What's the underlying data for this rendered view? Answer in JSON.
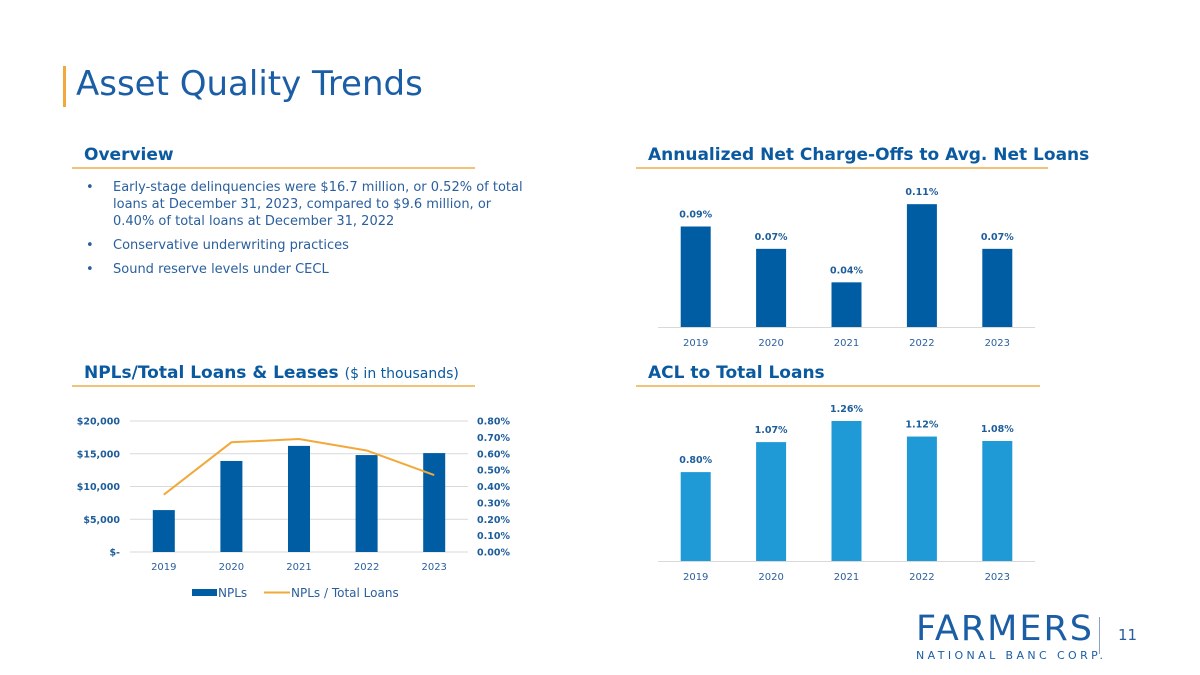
{
  "page": {
    "title": "Asset Quality Trends",
    "page_number": "11"
  },
  "overview": {
    "heading": "Overview",
    "bullets": [
      "Early-stage delinquencies were $16.7 million, or 0.52% of total loans at December 31, 2023, compared to $9.6 million, or 0.40% of total loans at December 31, 2022",
      "Conservative underwriting practices",
      "Sound reserve levels under CECL"
    ],
    "bullet_glyph": "•"
  },
  "logo": {
    "name": "FARMERS",
    "subtitle": "NATIONAL BANC CORP."
  },
  "colors": {
    "dark_blue": "#005da4",
    "light_blue": "#1f9ad6",
    "orange": "#f2a93b",
    "title_blue": "#1b5ea6"
  },
  "chart_data": [
    {
      "id": "nco",
      "type": "bar",
      "title": "Annualized Net Charge-Offs to Avg. Net Loans",
      "categories": [
        "2019",
        "2020",
        "2021",
        "2022",
        "2023"
      ],
      "values": [
        0.09,
        0.07,
        0.04,
        0.11,
        0.07
      ],
      "data_labels": [
        "0.09%",
        "0.07%",
        "0.04%",
        "0.11%",
        "0.07%"
      ],
      "xlabel": "",
      "ylabel": "",
      "ylim": [
        0,
        0.12
      ],
      "grid": false,
      "color": "#005da4"
    },
    {
      "id": "npl",
      "type": "bar",
      "title": "NPLs/Total Loans & Leases",
      "subtitle": "($ in thousands)",
      "categories": [
        "2019",
        "2020",
        "2021",
        "2022",
        "2023"
      ],
      "series": [
        {
          "name": "NPLs",
          "type": "bar",
          "axis": "left",
          "values": [
            6400,
            13900,
            16200,
            14800,
            15100
          ],
          "color": "#005da4"
        },
        {
          "name": "NPLs / Total Loans",
          "type": "line",
          "axis": "right",
          "values": [
            0.35,
            0.67,
            0.69,
            0.62,
            0.47
          ],
          "color": "#f2a93b"
        }
      ],
      "y_left": {
        "ylim": [
          0,
          20000
        ],
        "ticks": [
          "$-",
          "$5,000",
          "$10,000",
          "$15,000",
          "$20,000"
        ]
      },
      "y_right": {
        "ylim": [
          0,
          0.8
        ],
        "ticks": [
          "0.00%",
          "0.10%",
          "0.20%",
          "0.30%",
          "0.40%",
          "0.50%",
          "0.60%",
          "0.70%",
          "0.80%"
        ]
      },
      "grid": true,
      "legend": "bottom"
    },
    {
      "id": "acl",
      "type": "bar",
      "title": "ACL to Total Loans",
      "categories": [
        "2019",
        "2020",
        "2021",
        "2022",
        "2023"
      ],
      "values": [
        0.8,
        1.07,
        1.26,
        1.12,
        1.08
      ],
      "data_labels": [
        "0.80%",
        "1.07%",
        "1.26%",
        "1.12%",
        "1.08%"
      ],
      "xlabel": "",
      "ylabel": "",
      "ylim": [
        0,
        1.35
      ],
      "grid": false,
      "color": "#1f9ad6"
    }
  ]
}
